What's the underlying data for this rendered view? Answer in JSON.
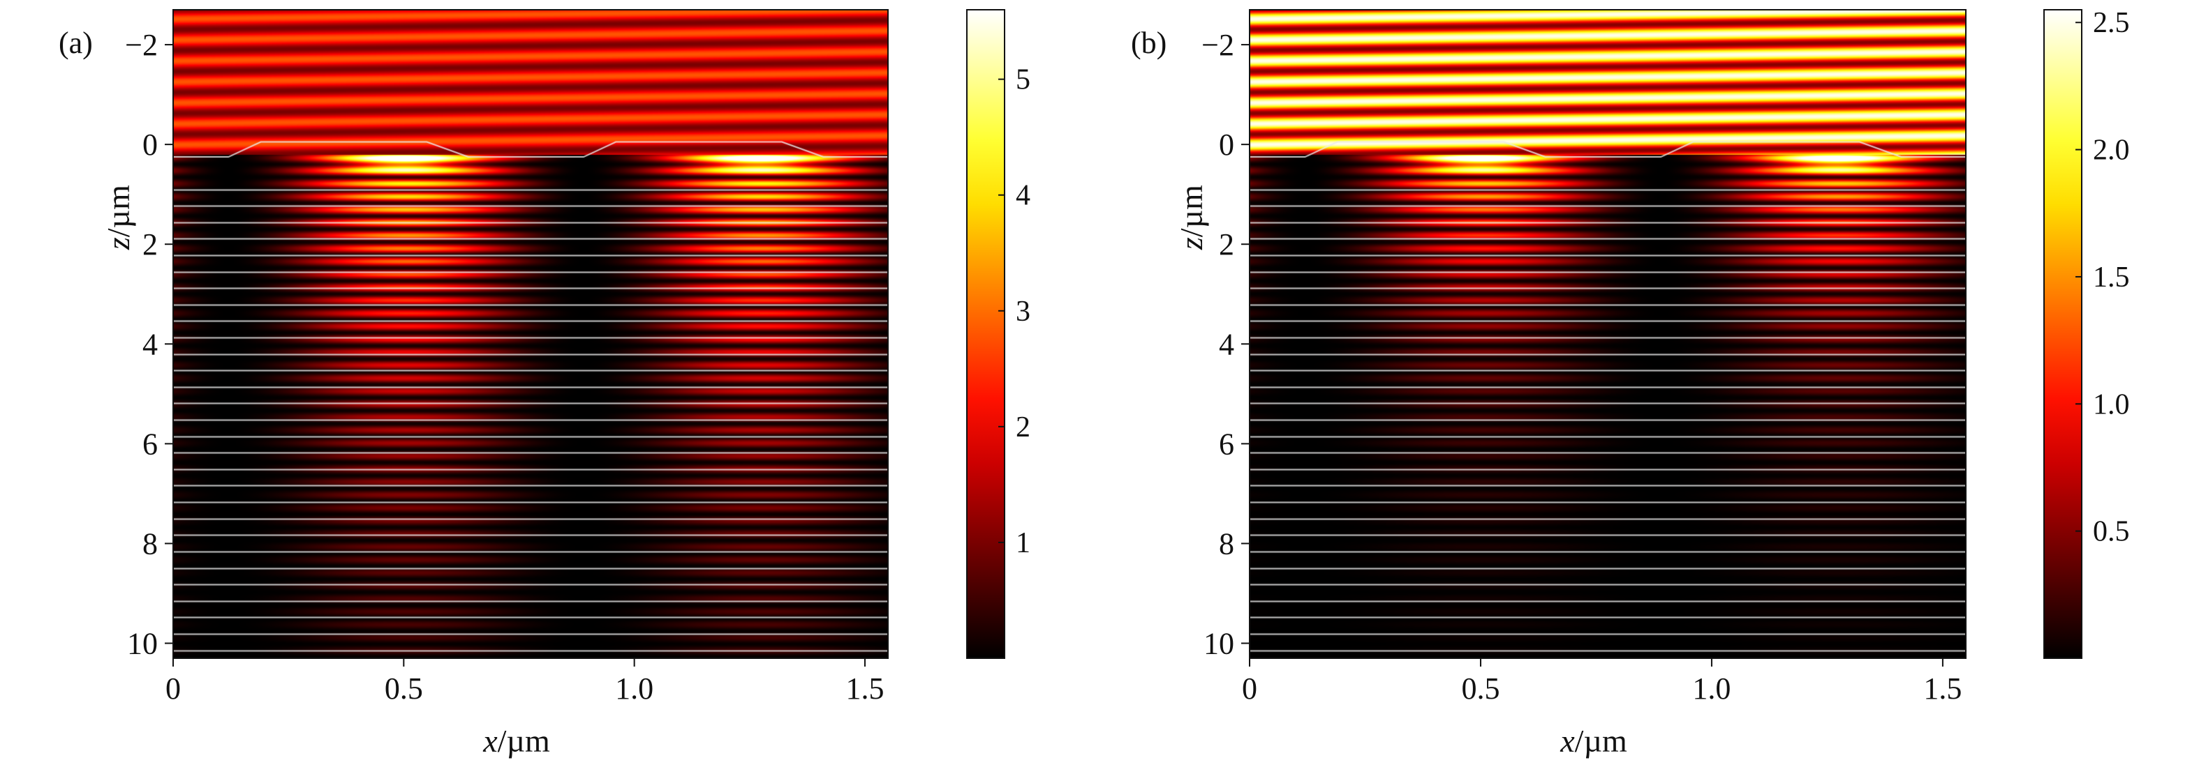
{
  "chart_data": [
    {
      "type": "heatmap",
      "panel_label": "(a)",
      "xlabel": "x/µm",
      "ylabel": "z/µm",
      "xlim": [
        0,
        1.55
      ],
      "ylim": [
        10.3,
        -2.7
      ],
      "y_inverted": true,
      "x_ticks": [
        0,
        0.5,
        1.0,
        1.5
      ],
      "x_tick_labels": [
        "0",
        "0.5",
        "1.0",
        "1.5"
      ],
      "y_ticks": [
        -2,
        0,
        2,
        4,
        6,
        8,
        10
      ],
      "y_tick_labels": [
        "−2",
        "0",
        "2",
        "4",
        "6",
        "8",
        "10"
      ],
      "colorbar": {
        "range": [
          0,
          5.6
        ],
        "ticks": [
          1,
          2,
          3,
          4,
          5
        ],
        "tick_labels": [
          "1",
          "2",
          "3",
          "4",
          "5"
        ],
        "colormap": "hot"
      },
      "field": {
        "incident_region_z": [
          -2.7,
          0.2
        ],
        "incident_intensity_mean": 1.9,
        "incident_intensity_amplitude": 0.9,
        "hotspot_intensity": 4.8,
        "decay_depth_um": 4.5
      }
    },
    {
      "type": "heatmap",
      "panel_label": "(b)",
      "xlabel": "x/µm",
      "ylabel": "z/µm",
      "xlim": [
        0,
        1.55
      ],
      "ylim": [
        10.3,
        -2.7
      ],
      "y_inverted": true,
      "x_ticks": [
        0,
        0.5,
        1.0,
        1.5
      ],
      "x_tick_labels": [
        "0",
        "0.5",
        "1.0",
        "1.5"
      ],
      "y_ticks": [
        -2,
        0,
        2,
        4,
        6,
        8,
        10
      ],
      "y_tick_labels": [
        "−2",
        "0",
        "2",
        "4",
        "6",
        "8",
        "10"
      ],
      "colorbar": {
        "range": [
          0,
          2.55
        ],
        "ticks": [
          0.5,
          1.0,
          1.5,
          2.0,
          2.5
        ],
        "tick_labels": [
          "0.5",
          "1.0",
          "1.5",
          "2.0",
          "2.5"
        ],
        "colormap": "hot"
      },
      "field": {
        "incident_region_z": [
          -2.7,
          0.2
        ],
        "incident_intensity_mean": 1.5,
        "incident_intensity_amplitude": 1.0,
        "hotspot_intensity": 2.2,
        "decay_depth_um": 2.5
      }
    }
  ]
}
